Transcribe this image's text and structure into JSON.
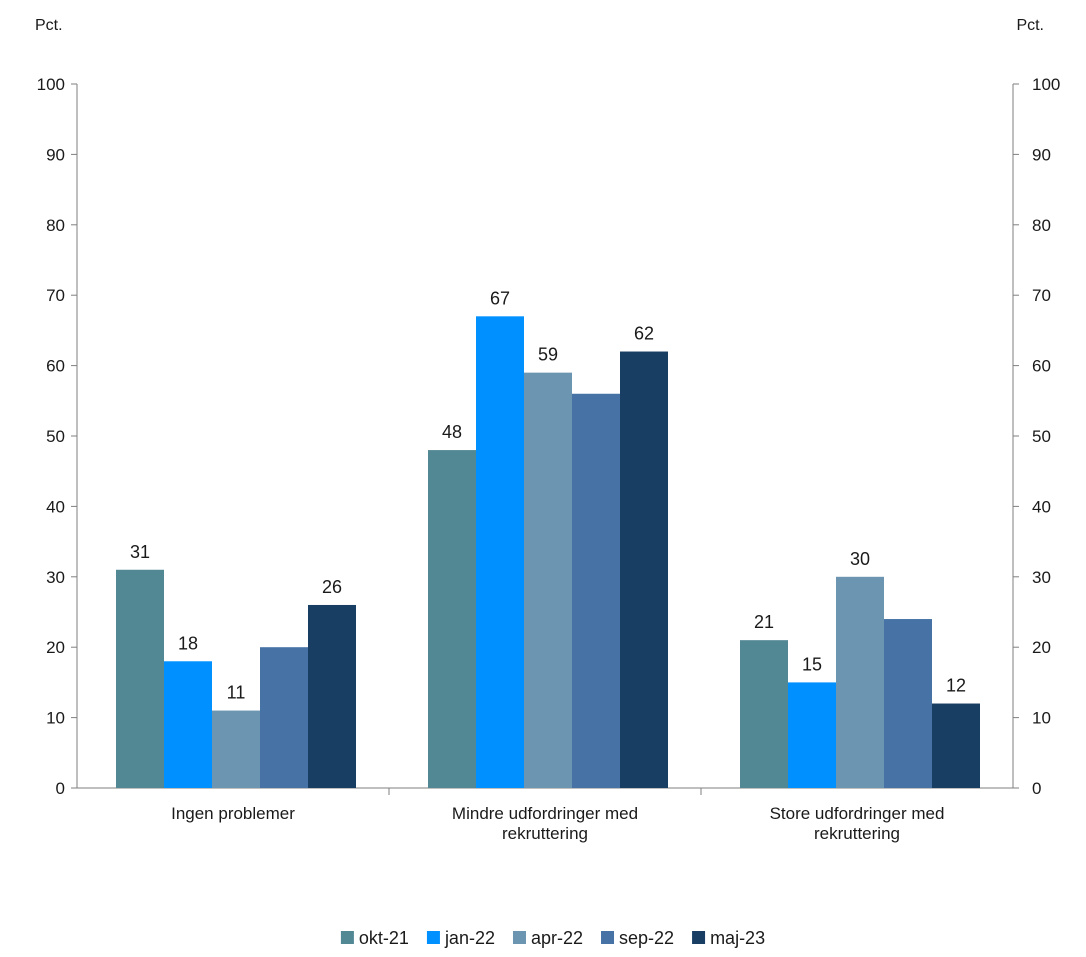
{
  "chart_data": {
    "type": "bar",
    "y_unit_left": "Pct.",
    "y_unit_right": "Pct.",
    "categories": [
      [
        "Ingen problemer"
      ],
      [
        "Mindre udfordringer med",
        "rekruttering"
      ],
      [
        "Store udfordringer med",
        "rekruttering"
      ]
    ],
    "series": [
      {
        "name": "okt-21",
        "color": "#528794",
        "values": [
          31,
          48,
          21
        ]
      },
      {
        "name": "jan-22",
        "color": "#0090ff",
        "values": [
          18,
          67,
          15
        ]
      },
      {
        "name": "apr-22",
        "color": "#6b95b0",
        "values": [
          11,
          59,
          30
        ]
      },
      {
        "name": "sep-22",
        "color": "#4672a6",
        "values": [
          20,
          56,
          24
        ]
      },
      {
        "name": "maj-23",
        "color": "#183f63",
        "values": [
          26,
          62,
          12
        ]
      }
    ],
    "data_labels": [
      [
        "31",
        "48",
        "21"
      ],
      [
        "18",
        "67",
        "15"
      ],
      [
        "11",
        "59",
        "30"
      ],
      [
        "",
        "",
        ""
      ],
      [
        "26",
        "62",
        "12"
      ]
    ],
    "ylim": [
      0,
      100
    ],
    "yticks": [
      0,
      10,
      20,
      30,
      40,
      50,
      60,
      70,
      80,
      90,
      100
    ],
    "grid": false,
    "legend_position": "bottom"
  }
}
